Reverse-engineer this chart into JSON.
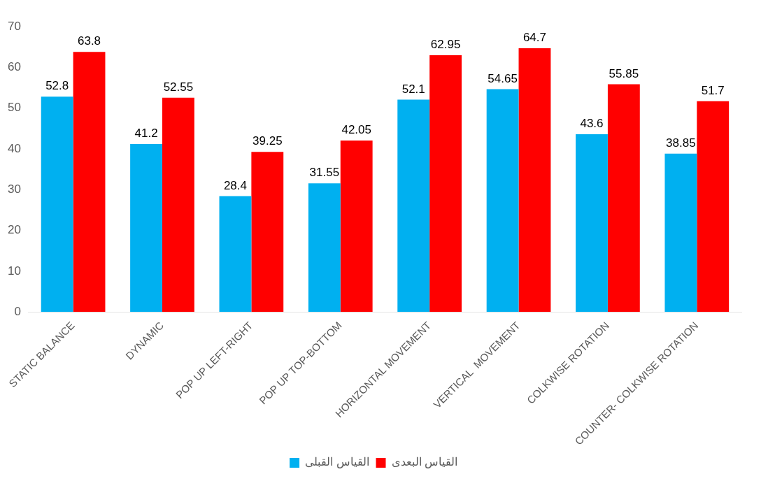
{
  "chart_data": {
    "type": "bar",
    "categories": [
      "STATIC BALANCE",
      "DYNAMIC",
      "POP UP LEFT-RIGHT",
      "POP UP TOP-BOTTOM",
      "HORIZONTAL MOVEMENT",
      "VERTICAL  MOVEMENT",
      "COLKWISE ROTATION",
      "COUNTER- COLKWISE ROTATION"
    ],
    "series": [
      {
        "name": "القياس القبلى",
        "color": "#00b0f0",
        "values": [
          52.8,
          41.2,
          28.4,
          31.55,
          52.1,
          54.65,
          43.6,
          38.85
        ]
      },
      {
        "name": "القياس البعدى",
        "color": "#ff0000",
        "values": [
          63.8,
          52.55,
          39.25,
          42.05,
          62.95,
          64.7,
          55.85,
          51.7
        ]
      }
    ],
    "ylim": [
      0,
      70
    ],
    "yticks": [
      0,
      10,
      20,
      30,
      40,
      50,
      60,
      70
    ],
    "grid": false,
    "legend": "bottom",
    "data_labels": true
  }
}
